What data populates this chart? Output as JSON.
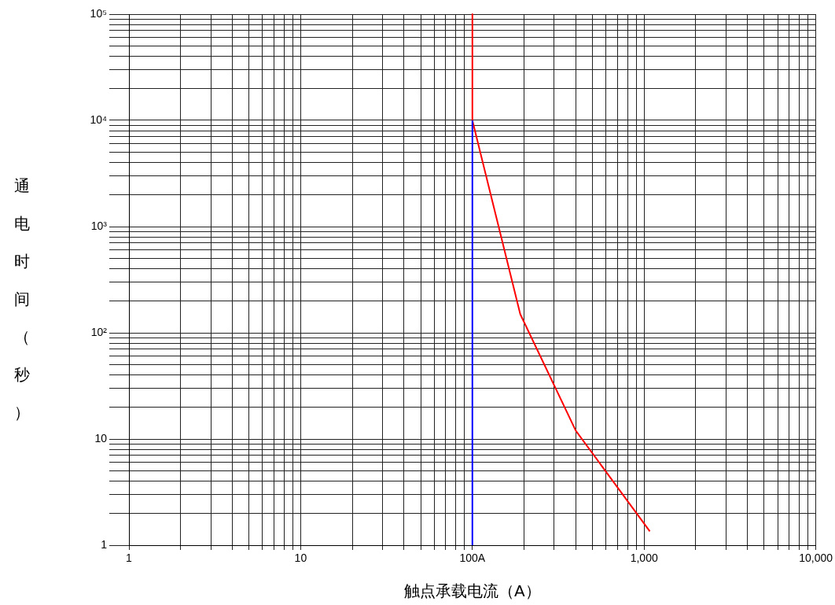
{
  "chart_data": {
    "type": "line",
    "xlabel": "触点承载电流（A）",
    "ylabel": "通电时间（秒）",
    "log": "xy",
    "grid": true,
    "legend": false,
    "marker": "none",
    "line_style": "solid",
    "xlim": [
      1,
      10000
    ],
    "ylim": [
      1,
      100000
    ],
    "xticks": [
      1,
      {
        "value": 2,
        "label": null
      },
      {
        "value": 3,
        "label": null
      },
      {
        "value": 4,
        "label": null
      },
      {
        "value": 5,
        "label": null
      },
      {
        "value": 6,
        "label": null
      },
      {
        "value": 7,
        "label": null
      },
      {
        "value": 8,
        "label": null
      },
      {
        "value": 9,
        "label": null
      },
      10,
      {
        "value": 20,
        "label": null
      },
      {
        "value": 30,
        "label": null
      },
      {
        "value": 40,
        "label": null
      },
      {
        "value": 50,
        "label": null
      },
      {
        "value": 60,
        "label": null
      },
      {
        "value": 70,
        "label": null
      },
      {
        "value": 80,
        "label": null
      },
      {
        "value": 90,
        "label": null
      },
      {
        "value": 100,
        "label": "100A"
      },
      {
        "value": 200,
        "label": null
      },
      {
        "value": 300,
        "label": null
      },
      {
        "value": 400,
        "label": null
      },
      {
        "value": 500,
        "label": null
      },
      {
        "value": 600,
        "label": null
      },
      {
        "value": 700,
        "label": null
      },
      {
        "value": 800,
        "label": null
      },
      {
        "value": 900,
        "label": null
      },
      {
        "value": 1000,
        "label": "1,000"
      },
      {
        "value": 2000,
        "label": null
      },
      {
        "value": 3000,
        "label": null
      },
      {
        "value": 4000,
        "label": null
      },
      {
        "value": 5000,
        "label": null
      },
      {
        "value": 6000,
        "label": null
      },
      {
        "value": 7000,
        "label": null
      },
      {
        "value": 8000,
        "label": null
      },
      {
        "value": 9000,
        "label": null
      },
      {
        "value": 10000,
        "label": "10,000"
      }
    ],
    "yticks": [
      1,
      {
        "value": 2,
        "label": null
      },
      {
        "value": 3,
        "label": null
      },
      {
        "value": 4,
        "label": null
      },
      {
        "value": 5,
        "label": null
      },
      {
        "value": 6,
        "label": null
      },
      {
        "value": 7,
        "label": null
      },
      {
        "value": 8,
        "label": null
      },
      {
        "value": 9,
        "label": null
      },
      10,
      {
        "value": 20,
        "label": null
      },
      {
        "value": 30,
        "label": null
      },
      {
        "value": 40,
        "label": null
      },
      {
        "value": 50,
        "label": null
      },
      {
        "value": 60,
        "label": null
      },
      {
        "value": 70,
        "label": null
      },
      {
        "value": 80,
        "label": null
      },
      {
        "value": 90,
        "label": null
      },
      {
        "value": 100,
        "label": "10²"
      },
      {
        "value": 200,
        "label": null
      },
      {
        "value": 300,
        "label": null
      },
      {
        "value": 400,
        "label": null
      },
      {
        "value": 500,
        "label": null
      },
      {
        "value": 600,
        "label": null
      },
      {
        "value": 700,
        "label": null
      },
      {
        "value": 800,
        "label": null
      },
      {
        "value": 900,
        "label": null
      },
      {
        "value": 1000,
        "label": "10³"
      },
      {
        "value": 2000,
        "label": null
      },
      {
        "value": 3000,
        "label": null
      },
      {
        "value": 4000,
        "label": null
      },
      {
        "value": 5000,
        "label": null
      },
      {
        "value": 6000,
        "label": null
      },
      {
        "value": 7000,
        "label": null
      },
      {
        "value": 8000,
        "label": null
      },
      {
        "value": 9000,
        "label": null
      },
      {
        "value": 10000,
        "label": "10⁴"
      },
      {
        "value": 20000,
        "label": null
      },
      {
        "value": 30000,
        "label": null
      },
      {
        "value": 40000,
        "label": null
      },
      {
        "value": 50000,
        "label": null
      },
      {
        "value": 60000,
        "label": null
      },
      {
        "value": 70000,
        "label": null
      },
      {
        "value": 80000,
        "label": null
      },
      {
        "value": 90000,
        "label": null
      },
      {
        "value": 100000,
        "label": "10⁵"
      }
    ],
    "series": [
      {
        "color": "#ff0000",
        "x": [
          100,
          100,
          190,
          400,
          1080
        ],
        "values": [
          100000,
          10000,
          150,
          12,
          1.35
        ]
      },
      {
        "color": "#0000ff",
        "x": [
          100,
          100
        ],
        "values": [
          1,
          10000
        ]
      }
    ]
  }
}
